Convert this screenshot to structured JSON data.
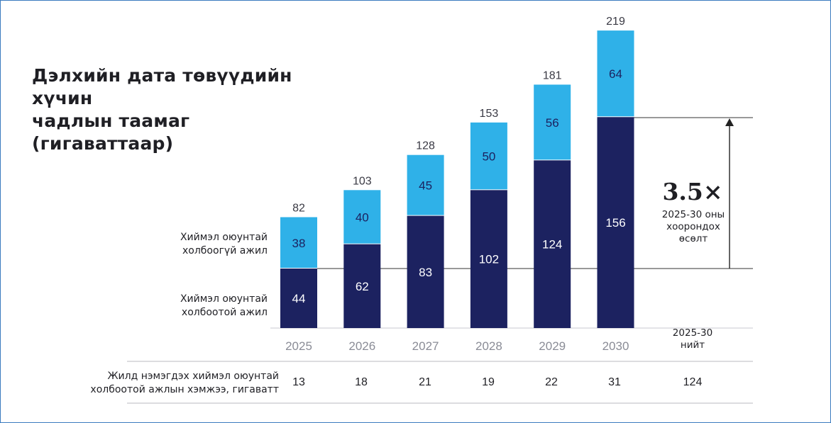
{
  "title_line1": "Дэлхийн дата төвүүдийн хүчин",
  "title_line2": "чадлын таамаг (гигаваттаар)",
  "legend": {
    "upper_line1": "Хиймэл оюунтай",
    "upper_line2": "холбоогүй ажил",
    "lower_line1": "Хиймэл оюунтай",
    "lower_line2": "холбоотой ажил"
  },
  "total_col": {
    "line1": "2025-30",
    "line2": "нийт"
  },
  "growth": {
    "multiplier": "3.5×",
    "line1": "2025-30 оны",
    "line2": "хоорондох",
    "line3": "өсөлт"
  },
  "increment_row": {
    "label_line1": "Жилд нэмэгдэх хиймэл оюунтай",
    "label_line2": "холбоотой ажлын хэмжээ, гигаватт",
    "values": [
      "13",
      "18",
      "21",
      "19",
      "22",
      "31"
    ],
    "total": "124"
  },
  "colors": {
    "ai": "#1c2260",
    "non_ai": "#2fb1e8",
    "gridline": "#333333",
    "tick": "#8a8c96"
  },
  "chart_data": {
    "type": "bar",
    "stacked": true,
    "title": "Дэлхийн дата төвүүдийн хүчин чадлын таамаг (гигаваттаар)",
    "categories": [
      "2025",
      "2026",
      "2027",
      "2028",
      "2029",
      "2030"
    ],
    "series": [
      {
        "name": "Хиймэл оюунтай холбоотой ажил",
        "values": [
          44,
          62,
          83,
          102,
          124,
          156
        ]
      },
      {
        "name": "Хиймэл оюунтай холбоогүй ажил",
        "values": [
          38,
          40,
          45,
          50,
          56,
          64
        ]
      }
    ],
    "totals": [
      82,
      103,
      128,
      153,
      181,
      219
    ],
    "ylim": [
      0,
      219
    ],
    "xlabel": "",
    "ylabel": "",
    "grid": false
  }
}
